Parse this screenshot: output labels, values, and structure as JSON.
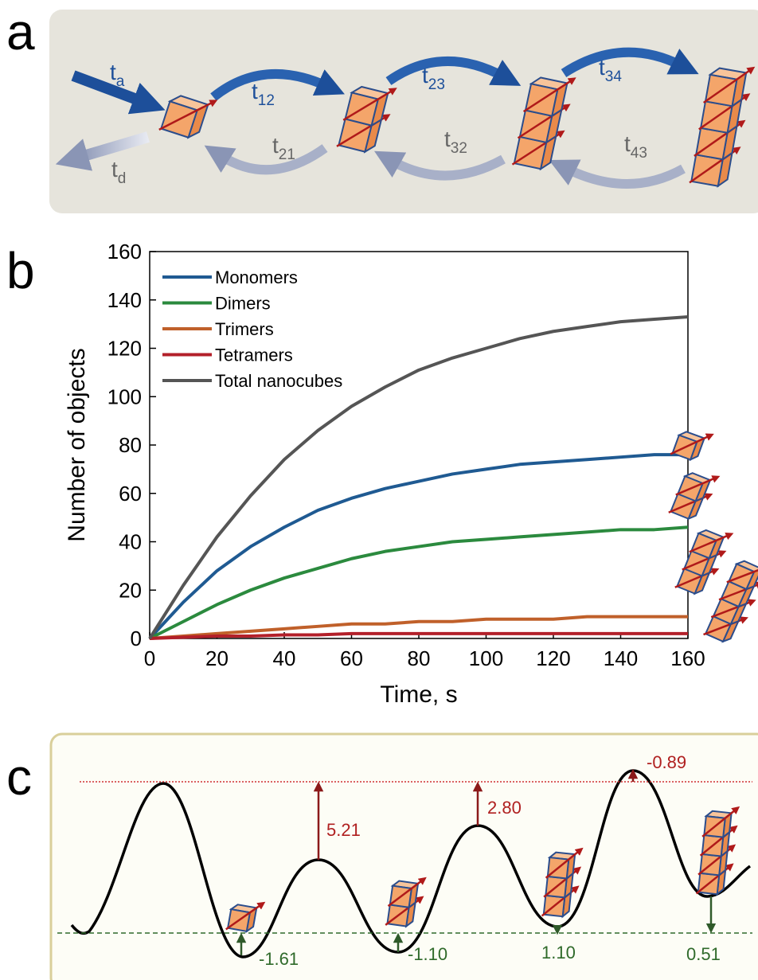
{
  "panel_a": {
    "label": "a",
    "rates": [
      {
        "t": "t",
        "sub": "a"
      },
      {
        "t": "t",
        "sub": "d"
      },
      {
        "t": "t",
        "sub": "12"
      },
      {
        "t": "t",
        "sub": "23"
      },
      {
        "t": "t",
        "sub": "34"
      },
      {
        "t": "t",
        "sub": "21"
      },
      {
        "t": "t",
        "sub": "32"
      },
      {
        "t": "t",
        "sub": "43"
      }
    ]
  },
  "chart_data": {
    "type": "line",
    "panel_label": "b",
    "x_label": "Time, s",
    "y_label": "Number of objects",
    "x": [
      0,
      10,
      20,
      30,
      40,
      50,
      60,
      70,
      80,
      90,
      100,
      110,
      120,
      130,
      140,
      150,
      160
    ],
    "series": [
      {
        "name": "Monomers",
        "color": "#1f5a92",
        "values": [
          0,
          15,
          28,
          38,
          46,
          53,
          58,
          62,
          65,
          68,
          70,
          72,
          73,
          74,
          75,
          76,
          76
        ]
      },
      {
        "name": "Dimers",
        "color": "#2b8a3e",
        "values": [
          0,
          7,
          14,
          20,
          25,
          29,
          33,
          36,
          38,
          40,
          41,
          42,
          43,
          44,
          45,
          45,
          46
        ]
      },
      {
        "name": "Trimers",
        "color": "#c0602a",
        "values": [
          0,
          1,
          2,
          3,
          4,
          5,
          6,
          6,
          7,
          7,
          8,
          8,
          8,
          9,
          9,
          9,
          9
        ]
      },
      {
        "name": "Tetramers",
        "color": "#b3202a",
        "values": [
          0,
          0.5,
          1,
          1,
          1.5,
          1.5,
          2,
          2,
          2,
          2,
          2,
          2,
          2,
          2,
          2,
          2,
          2
        ]
      },
      {
        "name": "Total nanocubes",
        "color": "#555555",
        "values": [
          0,
          22,
          42,
          59,
          74,
          86,
          96,
          104,
          111,
          116,
          120,
          124,
          127,
          129,
          131,
          132,
          133
        ]
      }
    ],
    "xlim": [
      0,
      160
    ],
    "xticks": [
      0,
      20,
      40,
      60,
      80,
      100,
      120,
      140,
      160
    ],
    "ylim": [
      0,
      160
    ],
    "yticks": [
      0,
      20,
      40,
      60,
      80,
      100,
      120,
      140,
      160
    ],
    "legend": "upper left"
  },
  "panel_c": {
    "label": "c",
    "barrier_labels": [
      "5.21",
      "2.80",
      "-0.89"
    ],
    "well_labels": [
      "-1.61",
      "-1.10",
      "1.10",
      "0.51"
    ]
  }
}
